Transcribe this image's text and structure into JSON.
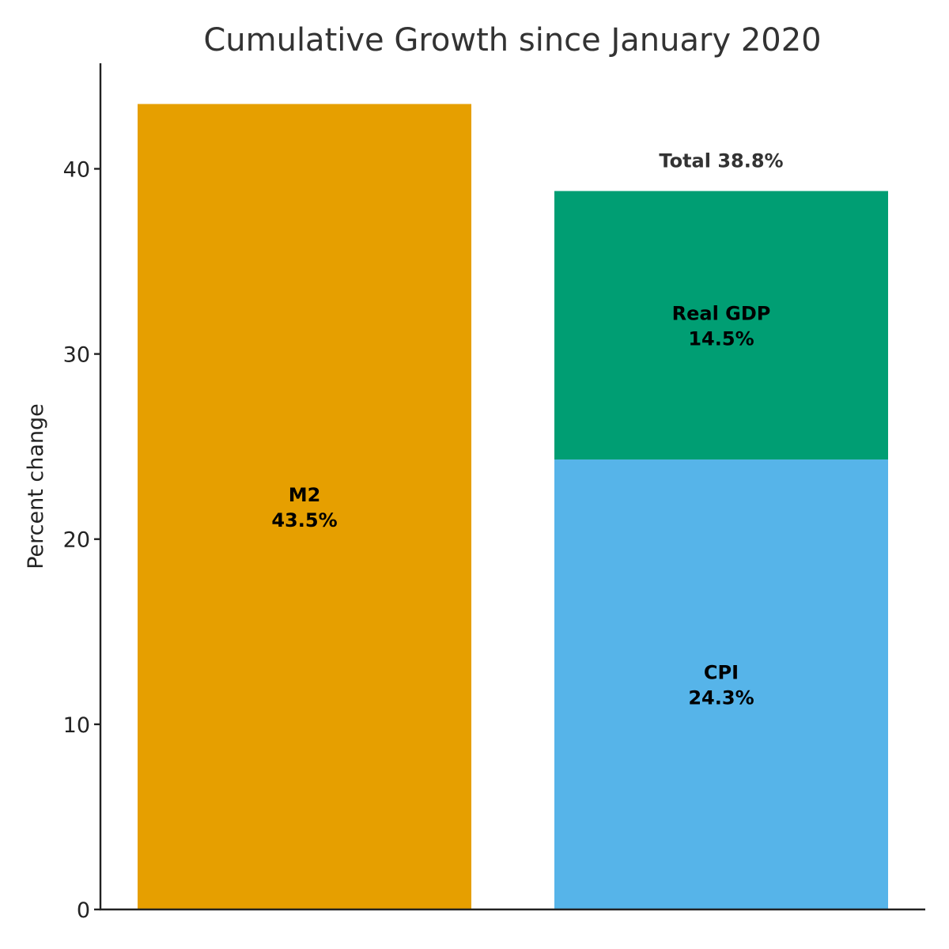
{
  "chart_data": {
    "type": "bar",
    "stacked": true,
    "title": "Cumulative Growth since January 2020",
    "xlabel": "",
    "ylabel": "Percent change",
    "ylim": [
      0,
      45.7
    ],
    "yticks": [
      0,
      10,
      20,
      30,
      40
    ],
    "grid": false,
    "bars": [
      {
        "segments": [
          {
            "name": "M2",
            "value": 43.5,
            "value_label": "43.5%",
            "color": "#E69F00"
          }
        ]
      },
      {
        "segments": [
          {
            "name": "CPI",
            "value": 24.3,
            "value_label": "24.3%",
            "color": "#56B4E9"
          },
          {
            "name": "Real GDP",
            "value": 14.5,
            "value_label": "14.5%",
            "color": "#009E73"
          }
        ],
        "total": 38.8,
        "total_label": "Total 38.8%"
      }
    ]
  }
}
